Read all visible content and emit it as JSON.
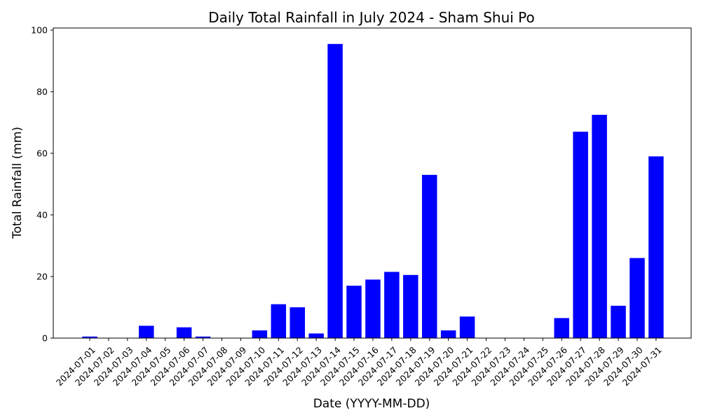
{
  "chart_data": {
    "type": "bar",
    "title": "Daily Total Rainfall in July 2024 - Sham Shui Po",
    "xlabel": "Date (YYYY-MM-DD)",
    "ylabel": "Total Rainfall (mm)",
    "ylim": [
      0,
      100
    ],
    "yticks": [
      0,
      20,
      40,
      60,
      80,
      100
    ],
    "grid": false,
    "bar_color": "#0000ff",
    "categories": [
      "2024-07-01",
      "2024-07-02",
      "2024-07-03",
      "2024-07-04",
      "2024-07-05",
      "2024-07-06",
      "2024-07-07",
      "2024-07-08",
      "2024-07-09",
      "2024-07-10",
      "2024-07-11",
      "2024-07-12",
      "2024-07-13",
      "2024-07-14",
      "2024-07-15",
      "2024-07-16",
      "2024-07-17",
      "2024-07-18",
      "2024-07-19",
      "2024-07-20",
      "2024-07-21",
      "2024-07-22",
      "2024-07-23",
      "2024-07-24",
      "2024-07-25",
      "2024-07-26",
      "2024-07-27",
      "2024-07-28",
      "2024-07-29",
      "2024-07-30",
      "2024-07-31"
    ],
    "values": [
      0.5,
      0,
      0,
      4.0,
      0,
      3.5,
      0.5,
      0,
      0,
      2.5,
      11.0,
      10.0,
      1.5,
      95.5,
      17.0,
      19.0,
      21.5,
      20.5,
      53.0,
      2.5,
      7.0,
      0,
      0,
      0,
      0,
      6.5,
      67.0,
      72.5,
      10.5,
      26.0,
      59.0
    ]
  }
}
